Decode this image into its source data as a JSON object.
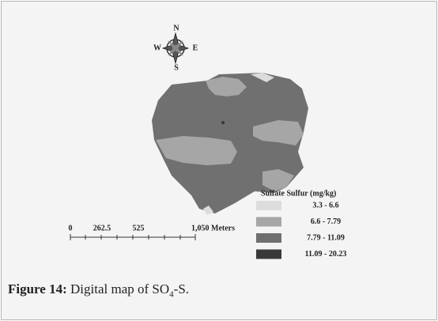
{
  "compass": {
    "n": "N",
    "s": "S",
    "e": "E",
    "w": "W"
  },
  "legend": {
    "title": "Sulfate Sulfur (mg/kg)",
    "items": [
      {
        "label": "3.3 - 6.6",
        "color": "#dcdcdc"
      },
      {
        "label": "6.6 - 7.79",
        "color": "#a6a6a6"
      },
      {
        "label": "7.79 - 11.09",
        "color": "#6f6f6f"
      },
      {
        "label": "11.09 - 20.23",
        "color": "#383838"
      }
    ]
  },
  "scale_bar": {
    "labels": [
      "0",
      "262.5",
      "525",
      "1,050 Meters"
    ]
  },
  "caption": {
    "label": "Figure 14:",
    "text": "Digital map of SO",
    "subscript": "4",
    "suffix": "-S."
  }
}
